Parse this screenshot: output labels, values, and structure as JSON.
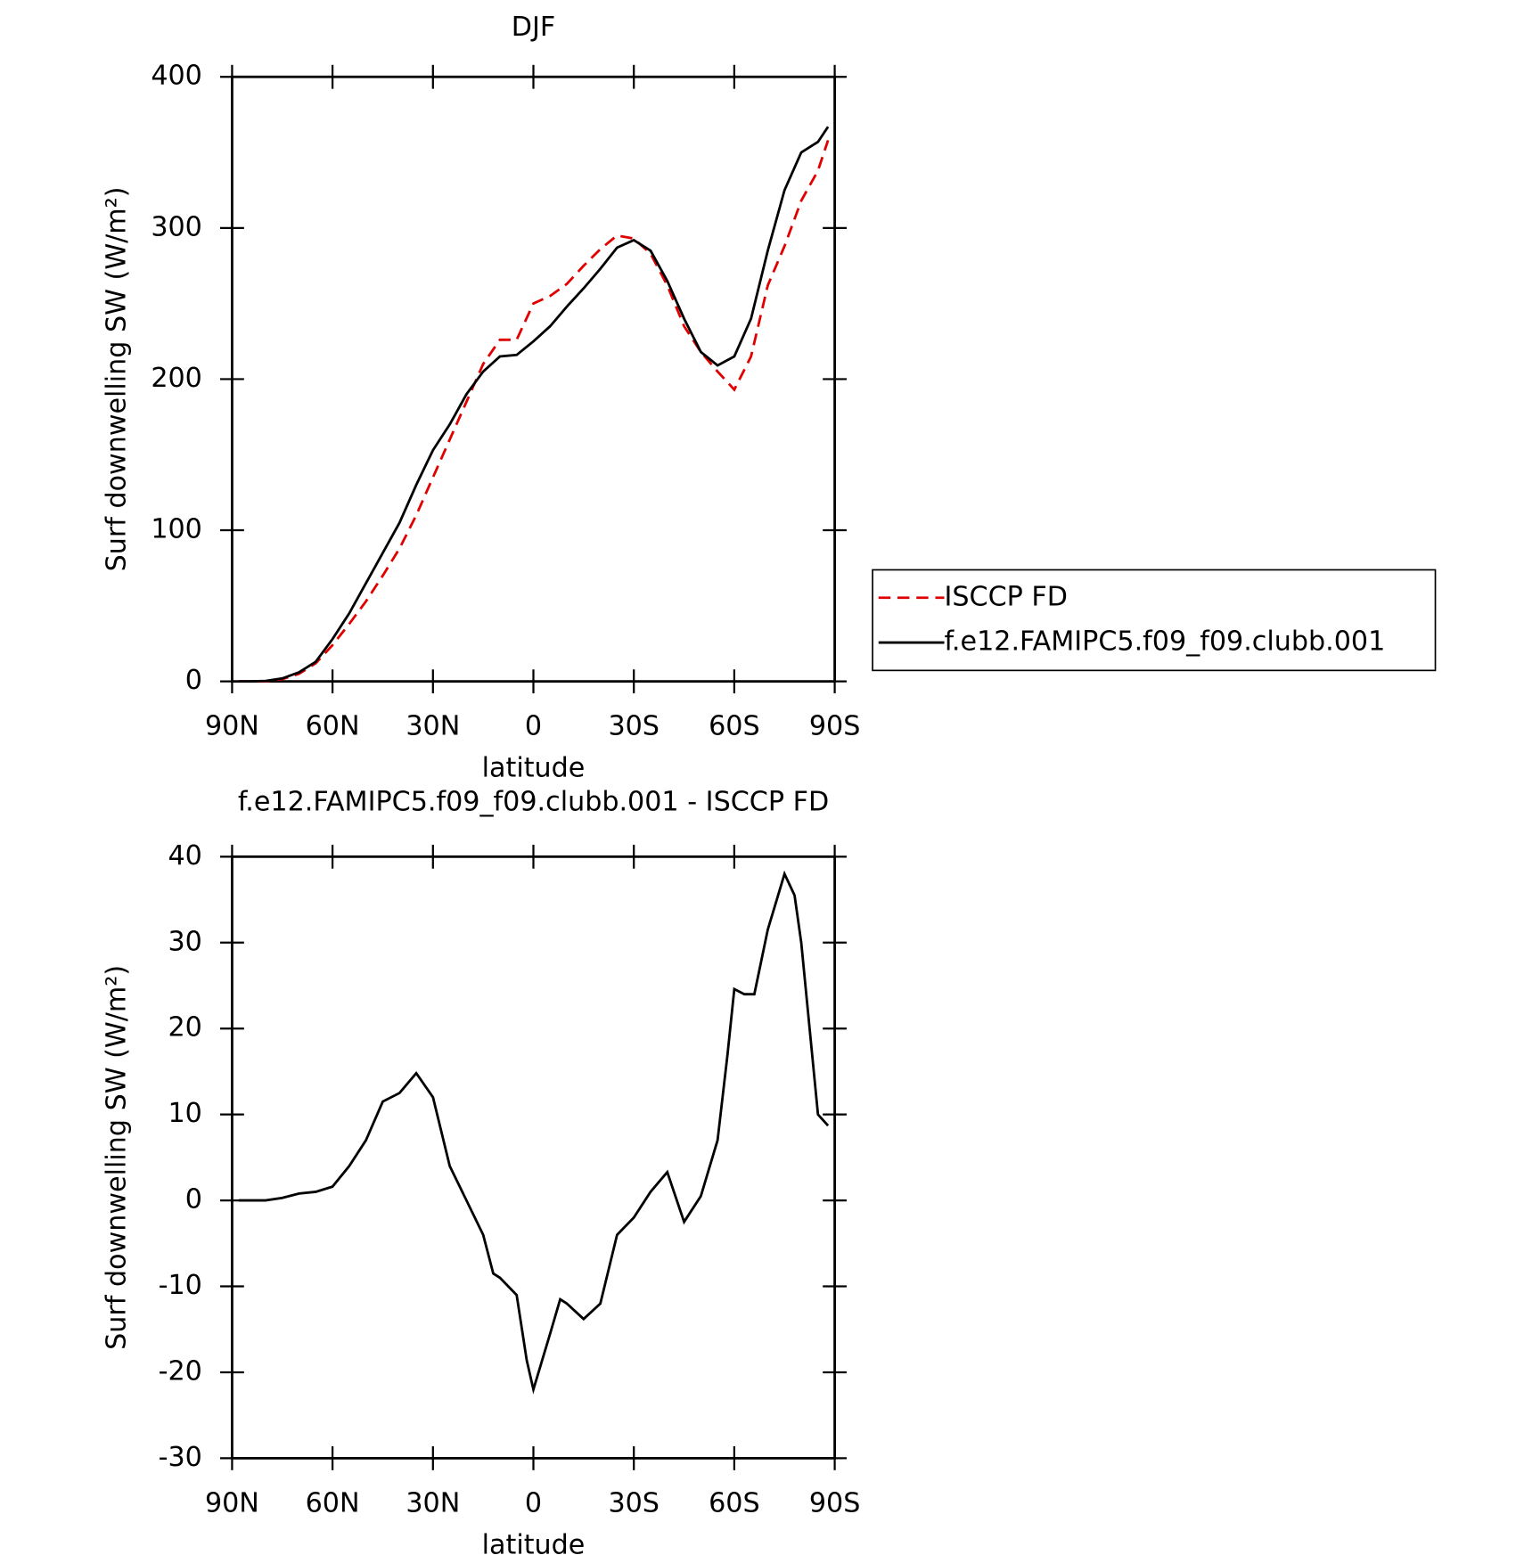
{
  "chart_data": [
    {
      "type": "line",
      "title": "DJF",
      "xlabel": "latitude",
      "ylabel": "Surf downwelling SW (W/m²)",
      "x": [
        88,
        85,
        80,
        75,
        70,
        65,
        60,
        55,
        50,
        45,
        40,
        35,
        30,
        25,
        20,
        15,
        10,
        5,
        0,
        -5,
        -10,
        -15,
        -20,
        -25,
        -30,
        -35,
        -40,
        -45,
        -50,
        -55,
        -60,
        -65,
        -70,
        -75,
        -80,
        -85,
        -88
      ],
      "series": [
        {
          "name": "ISCCP FD",
          "color": "#e00000",
          "dash": true,
          "values": [
            0,
            0,
            0,
            1.5,
            5,
            12,
            24,
            38,
            53,
            70,
            88,
            110,
            135,
            160,
            185,
            210,
            226,
            226,
            250,
            255,
            263,
            275,
            286,
            295,
            293,
            283,
            262,
            235,
            218,
            205,
            193,
            215,
            262,
            288,
            318,
            338,
            358
          ]
        },
        {
          "name": "f.e12.FAMIPC5.f09_f09.clubb.001",
          "color": "#000000",
          "dash": false,
          "values": [
            0,
            0,
            0.3,
            2,
            6,
            13,
            28,
            45,
            65,
            85,
            105,
            130,
            153,
            170,
            190,
            205,
            215,
            216,
            225,
            235,
            248,
            260,
            273,
            287,
            292,
            285,
            265,
            240,
            218,
            209,
            215,
            240,
            285,
            325,
            350,
            357,
            367
          ]
        }
      ],
      "xlim": [
        90,
        -90
      ],
      "xticks": [
        {
          "value": 90,
          "label": "90N"
        },
        {
          "value": 60,
          "label": "60N"
        },
        {
          "value": 30,
          "label": "30N"
        },
        0,
        {
          "value": -30,
          "label": "30S"
        },
        {
          "value": -60,
          "label": "60S"
        },
        {
          "value": -90,
          "label": "90S"
        }
      ],
      "ylim": [
        0,
        400
      ],
      "yticks": [
        0,
        100,
        200,
        300,
        400
      ],
      "legend": "right"
    },
    {
      "type": "line",
      "title": "f.e12.FAMIPC5.f09_f09.clubb.001 - ISCCP FD",
      "xlabel": "latitude",
      "ylabel": "Surf downwelling SW (W/m²)",
      "x": [
        88,
        85,
        80,
        75,
        70,
        65,
        60,
        55,
        50,
        45,
        40,
        35,
        30,
        25,
        20,
        15,
        12,
        10,
        5,
        2,
        0,
        -5,
        -8,
        -10,
        -15,
        -20,
        -25,
        -30,
        -35,
        -40,
        -45,
        -50,
        -55,
        -58,
        -60,
        -63,
        -66,
        -70,
        -75,
        -78,
        -80,
        -85,
        -88
      ],
      "values": [
        0,
        0,
        0,
        0.3,
        0.8,
        1,
        1.6,
        4,
        7,
        11.5,
        12.5,
        14.8,
        12,
        4,
        0,
        -4,
        -8.5,
        -9,
        -11,
        -18.6,
        -22,
        -15.5,
        -11.5,
        -12,
        -13.8,
        -12,
        -4,
        -2,
        1,
        3.3,
        -2.5,
        0.5,
        7,
        17,
        24.6,
        24,
        24,
        31.5,
        38,
        35.5,
        30,
        10,
        8.7
      ],
      "color": "#000000",
      "xlim": [
        90,
        -90
      ],
      "xticks": [
        {
          "value": 90,
          "label": "90N"
        },
        {
          "value": 60,
          "label": "60N"
        },
        {
          "value": 30,
          "label": "30N"
        },
        0,
        {
          "value": -30,
          "label": "30S"
        },
        {
          "value": -60,
          "label": "60S"
        },
        {
          "value": -90,
          "label": "90S"
        }
      ],
      "ylim": [
        -30,
        40
      ],
      "yticks": [
        -30,
        -20,
        -10,
        0,
        10,
        20,
        30,
        40
      ]
    }
  ]
}
